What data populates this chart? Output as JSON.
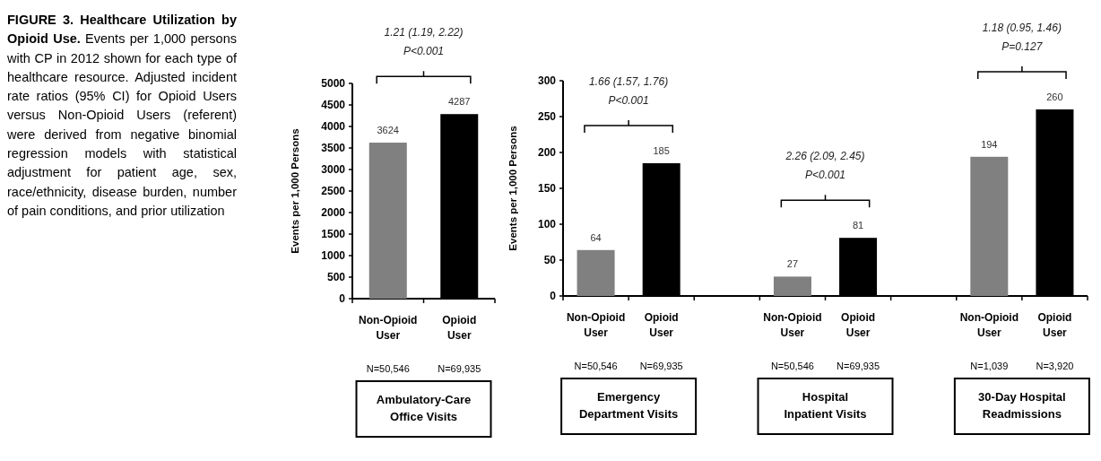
{
  "chart_data": [
    {
      "type": "other",
      "title": "FIGURE 3. Healthcare Utilization by Opioid Use.",
      "subtitle": "Events per 1,000 persons with CP in 2012 shown for each type of healthcare resource. Adjusted incident rate ratios (95% CI) for Opioid Users versus Non-Opioid Users (referent) were derived from negative binomial regression models with statistical adjustment for patient age, sex, race/ethnicity, disease burden, number of pain conditions, and prior utilization"
    },
    {
      "type": "bar",
      "ylabel": "Events per 1,000 Persons",
      "categories": [
        "Non-Opioid User",
        "Opioid User"
      ],
      "values": [
        3624,
        4287
      ],
      "colors": [
        "#808080",
        "#000000"
      ],
      "ylim": [
        0,
        5000
      ],
      "yticks": [
        0,
        500,
        1000,
        1500,
        2000,
        2500,
        3000,
        3500,
        4000,
        4500,
        5000
      ],
      "data_labels": true,
      "annotations": [
        "N=50,546",
        "N=69,935",
        "Ambulatory-Care\nOffice Visits",
        "1.21 (1.19, 2.22)\nP<0.001"
      ]
    },
    {
      "type": "bar",
      "ylabel": "Events per 1,000 Persons",
      "categories": [
        "Non-Opioid User",
        "Opioid User",
        "Non-Opioid User",
        "Opioid User",
        "Non-Opioid User",
        "Opioid User"
      ],
      "values": [
        64,
        185,
        27,
        81,
        194,
        260
      ],
      "colors": [
        "#808080",
        "#000000",
        "#808080",
        "#000000",
        "#808080",
        "#000000"
      ],
      "ylim": [
        0,
        300
      ],
      "yticks": [
        0,
        50,
        100,
        150,
        200,
        250,
        300
      ],
      "data_labels": true,
      "annotations": [
        "N=50,546",
        "N=69,935",
        "N=50,546",
        "N=69,935",
        "N=1,039",
        "N=3,920",
        "Emergency\nDepartment Visits",
        "Hospital\nInpatient Visits",
        "30-Day Hospital\nReadmissions",
        "1.66 (1.57, 1.76)\nP<0.001",
        "2.26 (2.09, 2.45)\nP<0.001",
        "1.18 (0.95, 1.46)\nP=0.127"
      ]
    }
  ]
}
